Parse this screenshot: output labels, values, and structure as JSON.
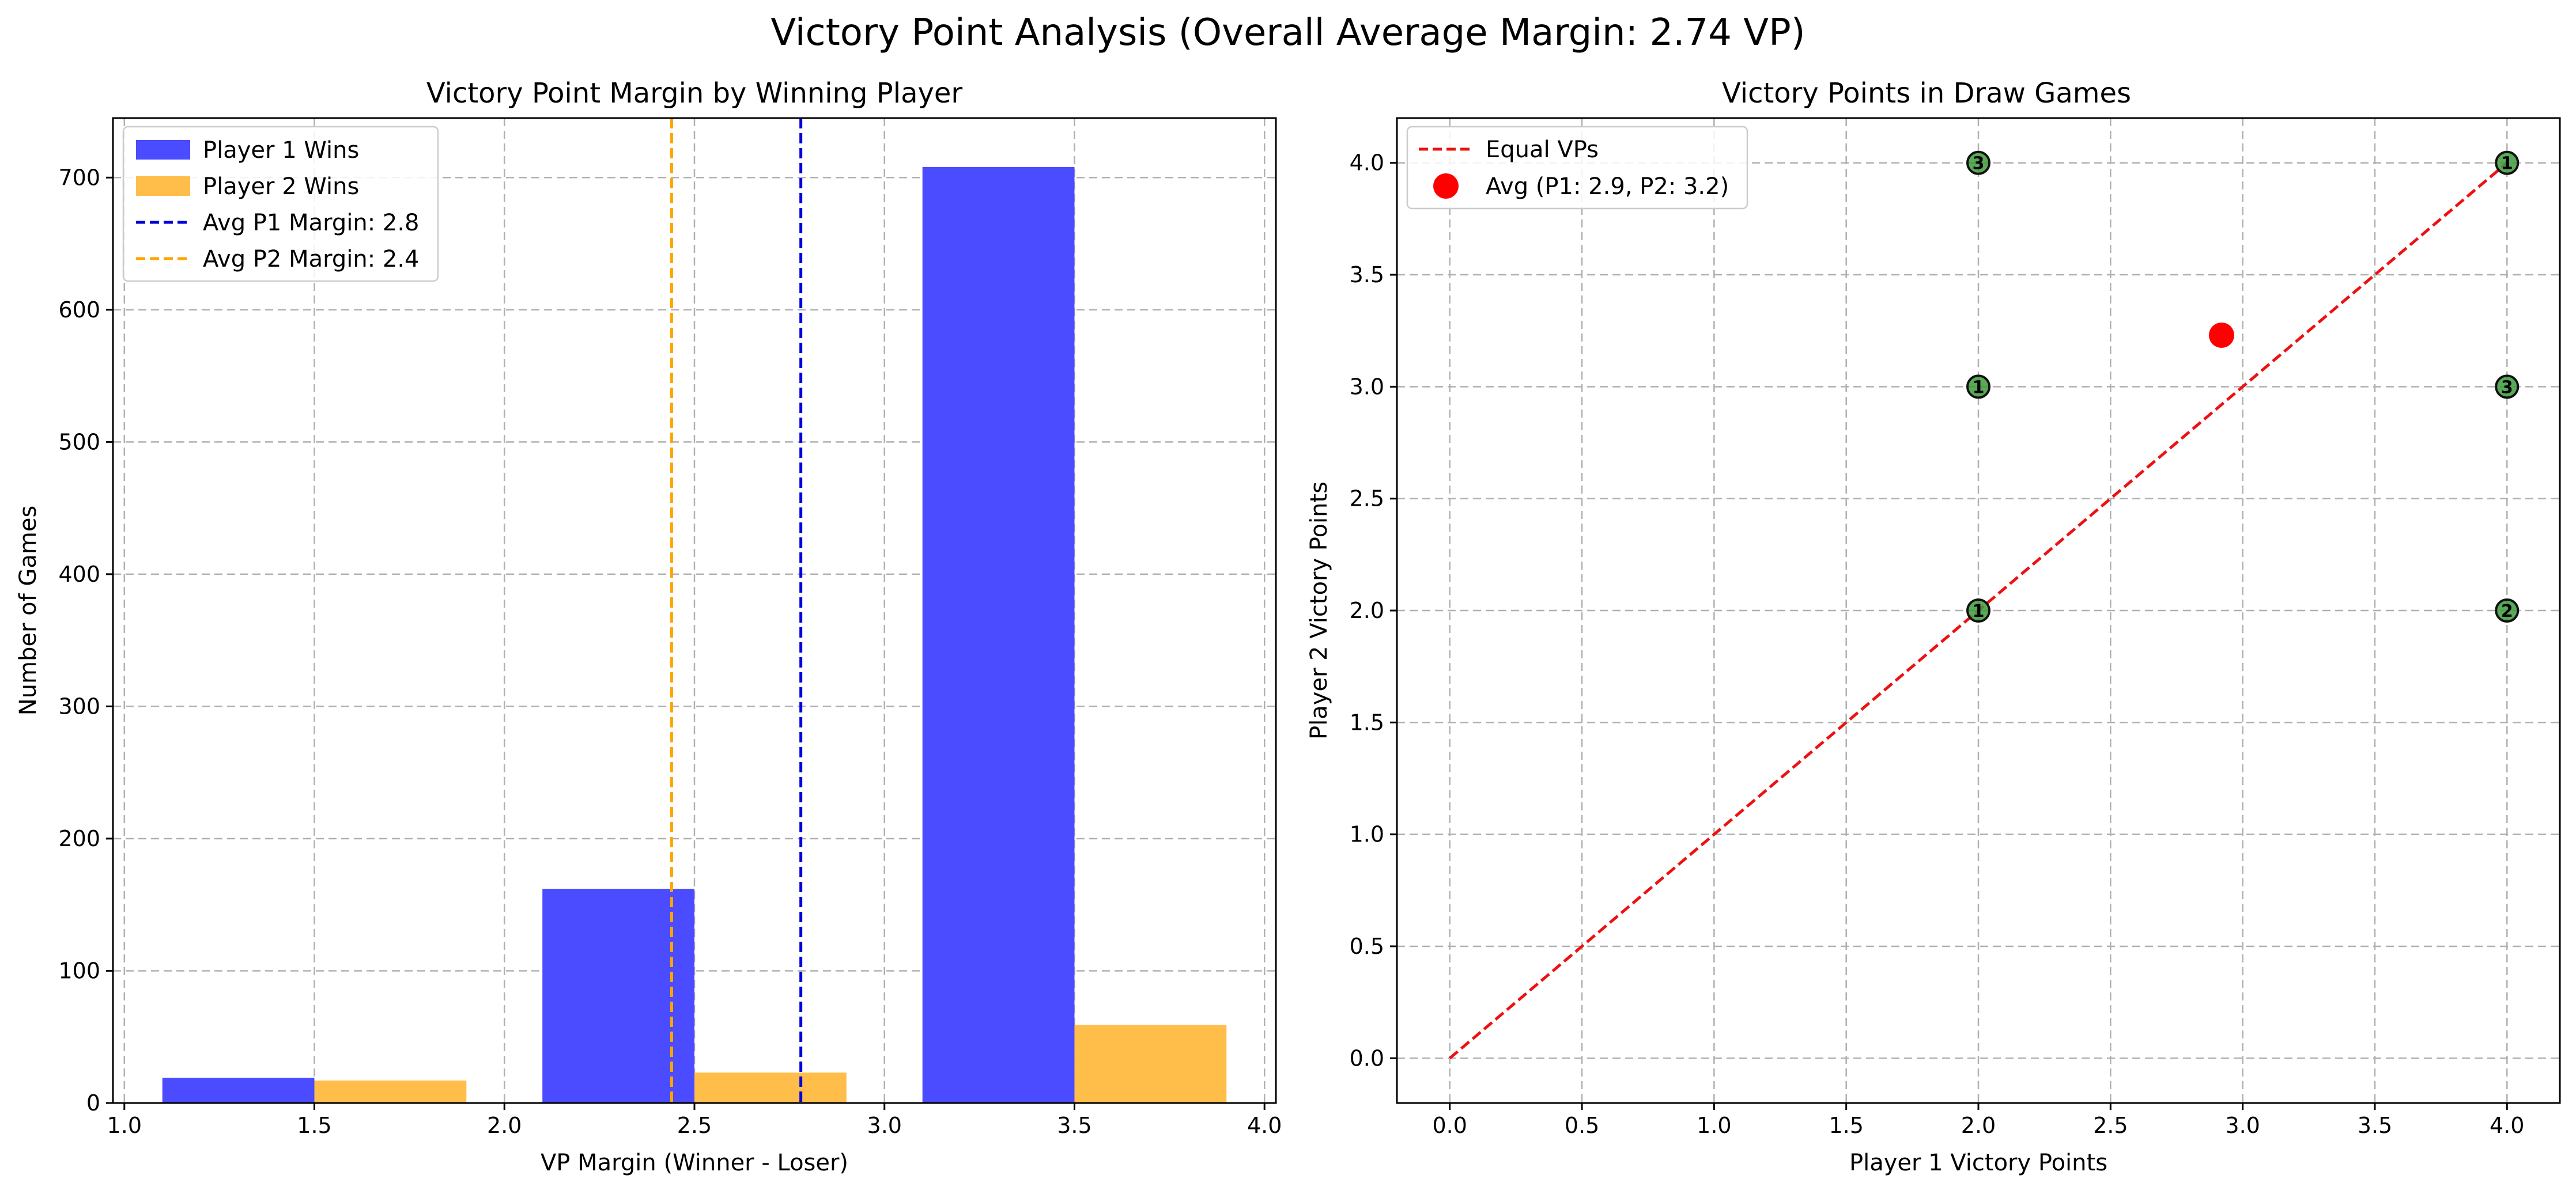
{
  "figure": {
    "title": "Victory Point Analysis (Overall Average Margin: 2.74 VP)"
  },
  "colors": {
    "p1": "#4b4bff",
    "p2": "#ffbe4a",
    "avg_p1_line": "#0000dd",
    "avg_p2_line": "#ffa500",
    "equal_line": "#ee1111",
    "avg_point": "#ff0000",
    "draw_point": "#3c9a3c"
  },
  "chart_data": [
    {
      "type": "bar",
      "title": "Victory Point Margin by Winning Player",
      "xlabel": "VP Margin (Winner - Loser)",
      "ylabel": "Number of Games",
      "xlim": [
        0.97,
        4.03
      ],
      "ylim": [
        0,
        745
      ],
      "xticks": [
        1.0,
        1.5,
        2.0,
        2.5,
        3.0,
        3.5,
        4.0
      ],
      "xtick_labels": [
        "1.0",
        "1.5",
        "2.0",
        "2.5",
        "3.0",
        "3.5",
        "4.0"
      ],
      "yticks": [
        0,
        100,
        200,
        300,
        400,
        500,
        600,
        700
      ],
      "ytick_labels": [
        "0",
        "100",
        "200",
        "300",
        "400",
        "500",
        "600",
        "700"
      ],
      "grid": true,
      "legend_position": "top-left",
      "bar_width": 0.4,
      "series": [
        {
          "name": "Player 1 Wins",
          "color_key": "p1",
          "x_centers": [
            1.3,
            2.3,
            3.3
          ],
          "values": [
            19,
            162,
            708
          ]
        },
        {
          "name": "Player 2 Wins",
          "color_key": "p2",
          "x_centers": [
            1.7,
            2.7,
            3.7
          ],
          "values": [
            17,
            23,
            59
          ]
        }
      ],
      "vlines": [
        {
          "name": "Avg P1 Margin: 2.8",
          "x": 2.78,
          "color_key": "avg_p1_line"
        },
        {
          "name": "Avg P2 Margin: 2.4",
          "x": 2.44,
          "color_key": "avg_p2_line"
        }
      ]
    },
    {
      "type": "scatter",
      "title": "Victory Points in Draw Games",
      "xlabel": "Player 1 Victory Points",
      "ylabel": "Player 2 Victory Points",
      "xlim": [
        -0.2,
        4.2
      ],
      "ylim": [
        -0.2,
        4.2
      ],
      "xticks": [
        0.0,
        0.5,
        1.0,
        1.5,
        2.0,
        2.5,
        3.0,
        3.5,
        4.0
      ],
      "xtick_labels": [
        "0.0",
        "0.5",
        "1.0",
        "1.5",
        "2.0",
        "2.5",
        "3.0",
        "3.5",
        "4.0"
      ],
      "yticks": [
        0.0,
        0.5,
        1.0,
        1.5,
        2.0,
        2.5,
        3.0,
        3.5,
        4.0
      ],
      "ytick_labels": [
        "0.0",
        "0.5",
        "1.0",
        "1.5",
        "2.0",
        "2.5",
        "3.0",
        "3.5",
        "4.0"
      ],
      "grid": true,
      "legend_position": "top-left",
      "equal_line": {
        "name": "Equal VPs",
        "from": [
          0,
          0
        ],
        "to": [
          4,
          4
        ]
      },
      "points": [
        {
          "x": 2,
          "y": 2,
          "label": "1"
        },
        {
          "x": 2,
          "y": 3,
          "label": "1"
        },
        {
          "x": 2,
          "y": 4,
          "label": "3"
        },
        {
          "x": 4,
          "y": 2,
          "label": "2"
        },
        {
          "x": 4,
          "y": 3,
          "label": "3"
        },
        {
          "x": 4,
          "y": 4,
          "label": "1"
        }
      ],
      "average_point": {
        "name": "Avg (P1: 2.9, P2: 3.2)",
        "x": 2.92,
        "y": 3.23
      }
    }
  ]
}
